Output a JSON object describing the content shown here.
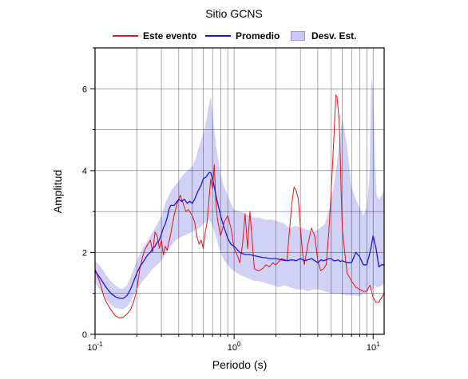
{
  "chart_data": {
    "type": "line",
    "title": "Sitio GCNS",
    "xlabel": "Periodo (s)",
    "ylabel": "Amplitud",
    "x_scale": "log",
    "xlim": [
      0.1,
      12
    ],
    "ylim": [
      0,
      7
    ],
    "x_ticks": [
      {
        "value": 0.1,
        "base": "10",
        "exp": "-1"
      },
      {
        "value": 1,
        "base": "10",
        "exp": "0"
      },
      {
        "value": 10,
        "base": "10",
        "exp": "1"
      }
    ],
    "y_ticks": [
      {
        "value": 0,
        "label": "0"
      },
      {
        "value": 2,
        "label": "2"
      },
      {
        "value": 4,
        "label": "4"
      },
      {
        "value": 6,
        "label": "6"
      }
    ],
    "grid": true,
    "legend_position": "top",
    "series": [
      {
        "name": "Este evento",
        "kind": "line",
        "color": "#e8141b",
        "x": [
          0.1,
          0.105,
          0.11,
          0.115,
          0.12,
          0.13,
          0.14,
          0.15,
          0.16,
          0.17,
          0.18,
          0.19,
          0.2,
          0.21,
          0.22,
          0.23,
          0.24,
          0.25,
          0.26,
          0.27,
          0.28,
          0.29,
          0.3,
          0.31,
          0.32,
          0.33,
          0.35,
          0.37,
          0.39,
          0.41,
          0.43,
          0.45,
          0.47,
          0.5,
          0.52,
          0.54,
          0.56,
          0.58,
          0.6,
          0.62,
          0.64,
          0.66,
          0.68,
          0.7,
          0.72,
          0.74,
          0.76,
          0.8,
          0.85,
          0.9,
          0.95,
          1.0,
          1.05,
          1.1,
          1.15,
          1.2,
          1.25,
          1.3,
          1.4,
          1.5,
          1.6,
          1.7,
          1.8,
          1.9,
          2.0,
          2.2,
          2.4,
          2.6,
          2.7,
          2.8,
          2.9,
          3.0,
          3.1,
          3.2,
          3.4,
          3.6,
          3.8,
          4.0,
          4.2,
          4.4,
          4.6,
          4.8,
          5.0,
          5.2,
          5.3,
          5.4,
          5.5,
          5.6,
          5.7,
          5.8,
          5.9,
          6.0,
          6.2,
          6.5,
          7.0,
          7.5,
          8.0,
          8.5,
          9.0,
          9.5,
          10.0,
          10.5,
          11.0,
          11.5,
          12.0
        ],
        "y": [
          1.6,
          1.4,
          1.2,
          0.95,
          0.8,
          0.6,
          0.45,
          0.4,
          0.42,
          0.5,
          0.6,
          0.8,
          1.1,
          1.6,
          1.9,
          2.1,
          2.2,
          2.3,
          2.0,
          2.5,
          2.4,
          2.1,
          2.3,
          1.95,
          2.15,
          2.05,
          2.45,
          2.9,
          3.2,
          3.4,
          3.2,
          3.0,
          3.05,
          2.9,
          2.75,
          2.4,
          2.2,
          2.3,
          2.1,
          2.5,
          2.75,
          3.3,
          3.8,
          3.55,
          4.15,
          3.2,
          2.8,
          2.4,
          2.75,
          2.9,
          2.6,
          2.1,
          1.95,
          1.75,
          2.2,
          2.95,
          2.1,
          3.0,
          1.6,
          1.55,
          1.6,
          1.7,
          1.65,
          1.75,
          1.7,
          1.85,
          1.8,
          3.2,
          3.6,
          3.5,
          3.3,
          2.6,
          2.0,
          1.7,
          2.2,
          2.6,
          2.4,
          1.8,
          1.55,
          1.6,
          1.7,
          2.5,
          3.5,
          4.7,
          5.3,
          5.85,
          5.8,
          5.5,
          5.2,
          4.4,
          3.4,
          2.6,
          2.1,
          1.5,
          1.3,
          1.15,
          1.1,
          1.05,
          1.05,
          1.2,
          0.9,
          0.78,
          0.78,
          0.9,
          1.0
        ]
      },
      {
        "name": "Promedio",
        "kind": "line",
        "color": "#1a1ad2",
        "x": [
          0.1,
          0.11,
          0.12,
          0.13,
          0.14,
          0.15,
          0.16,
          0.17,
          0.18,
          0.19,
          0.2,
          0.21,
          0.22,
          0.23,
          0.24,
          0.25,
          0.26,
          0.27,
          0.28,
          0.29,
          0.3,
          0.31,
          0.32,
          0.33,
          0.34,
          0.35,
          0.37,
          0.39,
          0.4,
          0.42,
          0.44,
          0.46,
          0.48,
          0.5,
          0.52,
          0.55,
          0.58,
          0.6,
          0.63,
          0.66,
          0.68,
          0.7,
          0.72,
          0.75,
          0.8,
          0.85,
          0.9,
          0.95,
          1.0,
          1.1,
          1.2,
          1.3,
          1.4,
          1.5,
          1.6,
          1.7,
          1.8,
          1.9,
          2.0,
          2.2,
          2.4,
          2.6,
          2.8,
          3.0,
          3.2,
          3.4,
          3.6,
          3.8,
          4.0,
          4.2,
          4.4,
          4.6,
          4.8,
          5.0,
          5.2,
          5.4,
          5.6,
          5.8,
          6.0,
          6.5,
          7.0,
          7.5,
          8.0,
          8.5,
          9.0,
          9.5,
          10.0,
          10.5,
          11.0,
          11.5,
          12.0
        ],
        "y": [
          1.55,
          1.35,
          1.15,
          1.0,
          0.92,
          0.88,
          0.88,
          0.95,
          1.1,
          1.3,
          1.5,
          1.65,
          1.75,
          1.85,
          1.95,
          2.0,
          2.1,
          2.15,
          2.25,
          2.3,
          2.45,
          2.6,
          2.7,
          2.85,
          3.05,
          3.15,
          3.15,
          3.25,
          3.3,
          3.25,
          3.3,
          3.2,
          3.25,
          3.2,
          3.3,
          3.5,
          3.65,
          3.8,
          3.85,
          3.95,
          3.95,
          3.8,
          3.6,
          3.3,
          2.9,
          2.6,
          2.35,
          2.2,
          2.15,
          2.0,
          1.95,
          1.95,
          1.92,
          1.9,
          1.88,
          1.87,
          1.85,
          1.85,
          1.85,
          1.82,
          1.8,
          1.82,
          1.8,
          1.85,
          1.8,
          1.82,
          1.85,
          1.8,
          1.75,
          1.82,
          1.8,
          1.82,
          1.85,
          1.85,
          1.8,
          1.8,
          1.82,
          1.78,
          1.8,
          1.75,
          1.75,
          2.0,
          1.9,
          1.7,
          1.7,
          2.0,
          2.4,
          2.1,
          1.65,
          1.7,
          1.7
        ]
      },
      {
        "name": "Desv. Est.",
        "kind": "band",
        "color": "#c9c9f3",
        "x": [
          0.1,
          0.11,
          0.12,
          0.13,
          0.14,
          0.15,
          0.16,
          0.17,
          0.18,
          0.19,
          0.2,
          0.22,
          0.24,
          0.26,
          0.28,
          0.3,
          0.32,
          0.34,
          0.36,
          0.38,
          0.4,
          0.43,
          0.46,
          0.5,
          0.53,
          0.56,
          0.6,
          0.63,
          0.65,
          0.68,
          0.7,
          0.72,
          0.75,
          0.8,
          0.85,
          0.9,
          0.95,
          1.0,
          1.1,
          1.2,
          1.3,
          1.4,
          1.5,
          1.7,
          1.9,
          2.1,
          2.3,
          2.5,
          2.8,
          3.1,
          3.4,
          3.7,
          4.0,
          4.5,
          5.0,
          5.5,
          6.0,
          6.5,
          7.0,
          7.5,
          8.0,
          8.5,
          9.0,
          9.4,
          9.7,
          10.0,
          10.3,
          10.6,
          11.0,
          11.5,
          12.0
        ],
        "lower": [
          1.25,
          1.05,
          0.85,
          0.72,
          0.65,
          0.62,
          0.62,
          0.68,
          0.8,
          0.95,
          1.1,
          1.3,
          1.45,
          1.6,
          1.7,
          1.8,
          1.95,
          2.1,
          2.2,
          2.3,
          2.35,
          2.4,
          2.45,
          2.5,
          2.55,
          2.6,
          2.7,
          2.75,
          2.8,
          2.75,
          2.65,
          2.5,
          2.3,
          2.0,
          1.8,
          1.7,
          1.6,
          1.55,
          1.45,
          1.4,
          1.35,
          1.3,
          1.3,
          1.25,
          1.2,
          1.15,
          1.2,
          1.15,
          1.1,
          1.1,
          1.05,
          1.1,
          1.1,
          1.05,
          1.0,
          1.0,
          0.98,
          0.95,
          0.95,
          0.95,
          0.92,
          1.0,
          0.98,
          1.15,
          1.1,
          1.1,
          1.2,
          1.15,
          1.15,
          1.2,
          1.2
        ],
        "upper": [
          1.8,
          1.65,
          1.45,
          1.3,
          1.2,
          1.12,
          1.12,
          1.2,
          1.4,
          1.6,
          1.8,
          2.1,
          2.3,
          2.5,
          2.7,
          2.9,
          3.2,
          3.4,
          3.55,
          3.65,
          3.75,
          3.9,
          4.0,
          4.1,
          4.3,
          4.6,
          4.9,
          5.2,
          5.5,
          5.8,
          5.4,
          5.0,
          4.5,
          3.9,
          3.6,
          3.4,
          3.2,
          3.05,
          3.0,
          2.95,
          2.9,
          2.85,
          2.85,
          2.8,
          2.8,
          2.75,
          2.7,
          2.6,
          2.65,
          2.6,
          2.55,
          2.5,
          2.55,
          2.7,
          3.2,
          4.2,
          5.3,
          4.6,
          3.6,
          3.3,
          3.1,
          2.9,
          3.1,
          3.8,
          6.3,
          6.0,
          4.4,
          3.4,
          3.3,
          3.4,
          3.5
        ]
      }
    ]
  }
}
